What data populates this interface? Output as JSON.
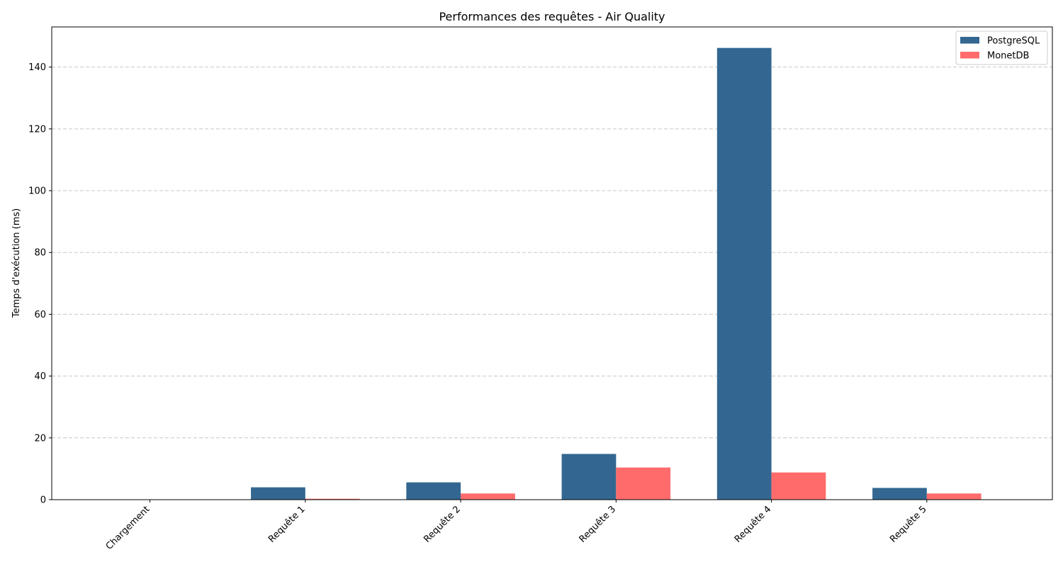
{
  "chart_data": {
    "type": "bar",
    "title": "Performances des requêtes - Air Quality",
    "xlabel": "",
    "ylabel": "Temps d'exécution (ms)",
    "categories": [
      "Chargement",
      "Requête 1",
      "Requête 2",
      "Requête 3",
      "Requête 4",
      "Requête 5"
    ],
    "series": [
      {
        "name": "PostgreSQL",
        "color": "#336791",
        "values": [
          0,
          4.0,
          5.6,
          14.8,
          146.2,
          3.8
        ]
      },
      {
        "name": "MonetDB",
        "color": "#FF6B6B",
        "values": [
          0,
          0.3,
          2.0,
          10.4,
          8.8,
          2.0
        ]
      }
    ],
    "ylim": [
      0,
      153
    ],
    "yticks": [
      0,
      20,
      40,
      60,
      80,
      100,
      120,
      140
    ],
    "grid": true,
    "legend_position": "top-right"
  }
}
